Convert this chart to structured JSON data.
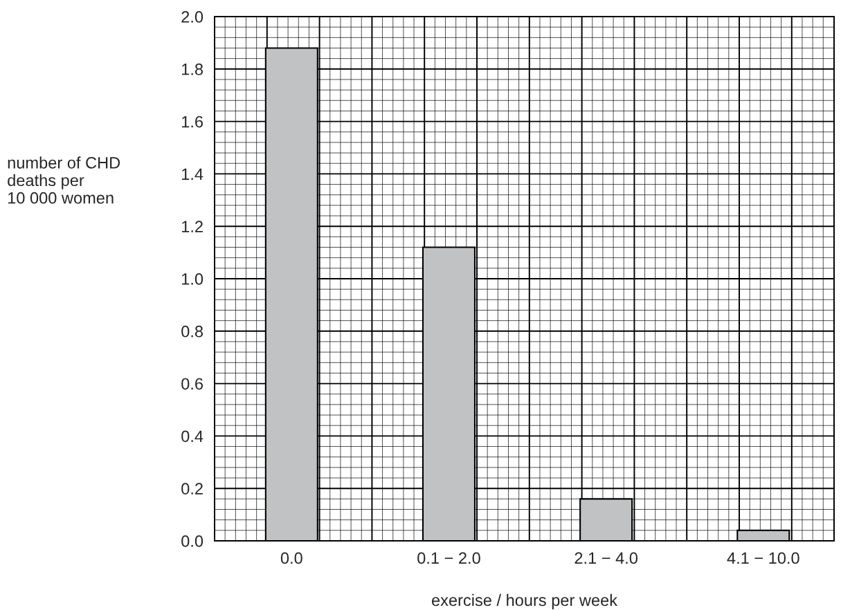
{
  "chart_data": {
    "type": "bar",
    "xlabel": "exercise / hours per week",
    "ylabel": "number of CHD\ndeaths per\n10 000 women",
    "categories": [
      "0.0",
      "0.1 − 2.0",
      "2.1 − 4.0",
      "4.1 − 10.0"
    ],
    "values": [
      1.88,
      1.12,
      0.16,
      0.04
    ],
    "color": "#c0c2c4",
    "ylim": [
      0,
      2.0
    ],
    "yticks": [
      {
        "value": 0,
        "label": "0.0"
      },
      0.2,
      0.4,
      0.6,
      0.8,
      {
        "value": 1,
        "label": "1.0"
      },
      1.2,
      1.4,
      1.6,
      1.8,
      {
        "value": 2,
        "label": "2.0"
      }
    ],
    "grid": true
  }
}
